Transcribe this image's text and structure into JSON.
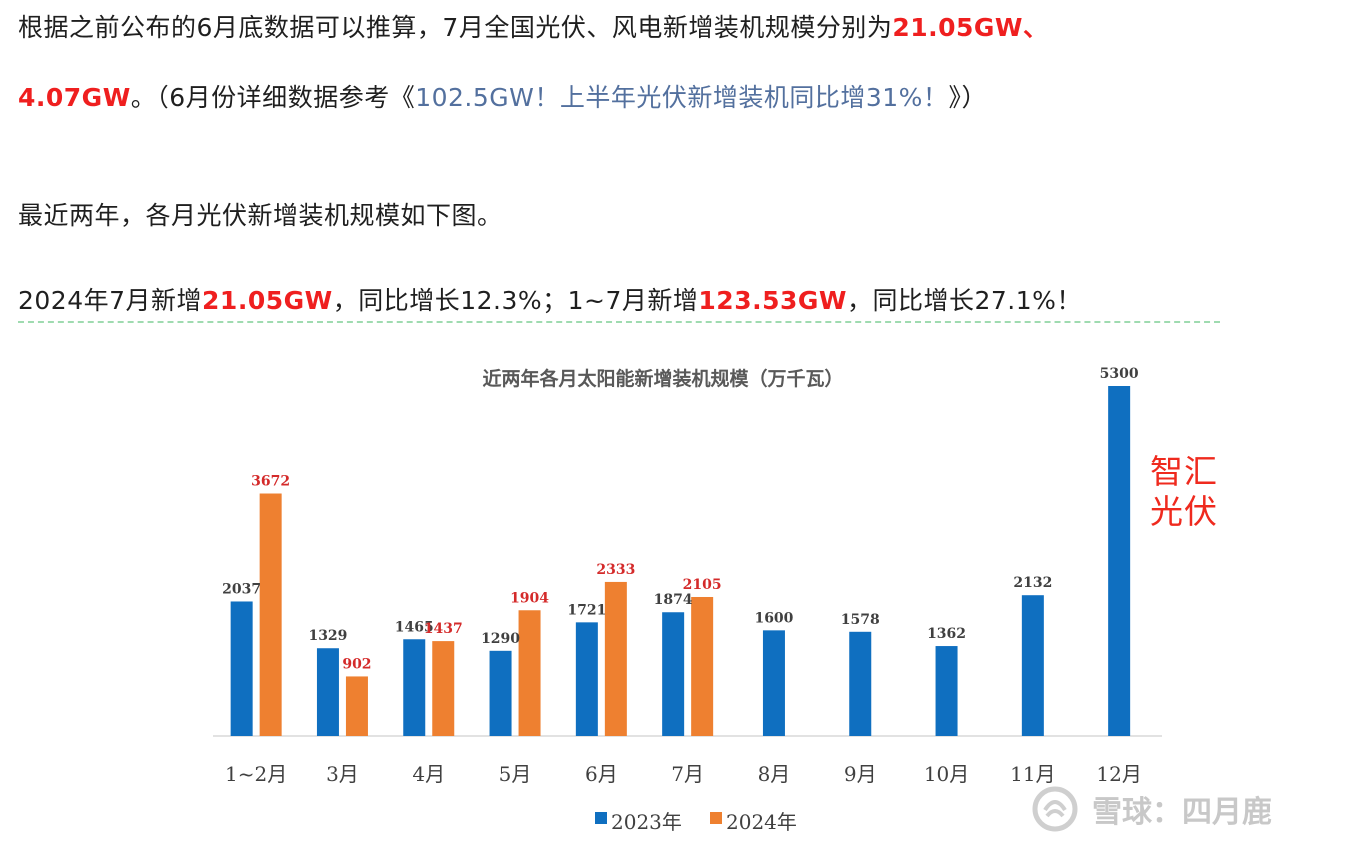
{
  "article": {
    "p1_text": "根据之前公布的6月底数据可以推算，7月全国光伏、风电新增装机规模分别为",
    "p1_highlight": "21.05GW",
    "p1_tail": "、",
    "p2_highlight": "4.07GW",
    "p2_text1": "。（6月份详细数据参考《",
    "p2_link": "102.5GW！上半年光伏新增装机同比增31%！",
    "p2_text2": "》）",
    "p3_text": "最近两年，各月光伏新增装机规模如下图。",
    "p4_text1": "2024年7月新增",
    "p4_highlight1": "21.05GW",
    "p4_text2": "，同比增长12.3%；1~7月新增",
    "p4_highlight2": "123.53GW",
    "p4_text3": "，同比增长27.1%！"
  },
  "chart_data": {
    "type": "bar",
    "title": "近两年各月太阳能新增装机规模（万千瓦）",
    "categories": [
      "1~2月",
      "3月",
      "4月",
      "5月",
      "6月",
      "7月",
      "8月",
      "9月",
      "10月",
      "11月",
      "12月"
    ],
    "series": [
      {
        "name": "2023年",
        "color": "#0f6fc0",
        "values": [
          2037,
          1329,
          1465,
          1290,
          1721,
          1874,
          1600,
          1578,
          1362,
          2132,
          5300
        ]
      },
      {
        "name": "2024年",
        "color": "#ee8030",
        "values": [
          3672,
          902,
          1437,
          1904,
          2333,
          2105,
          null,
          null,
          null,
          null,
          null
        ]
      }
    ],
    "legend_position": "bottom",
    "grid": false
  },
  "watermarks": {
    "red_line1": "智汇",
    "red_line2": "光伏",
    "xueqiu_text": "雪球：四月鹿"
  }
}
